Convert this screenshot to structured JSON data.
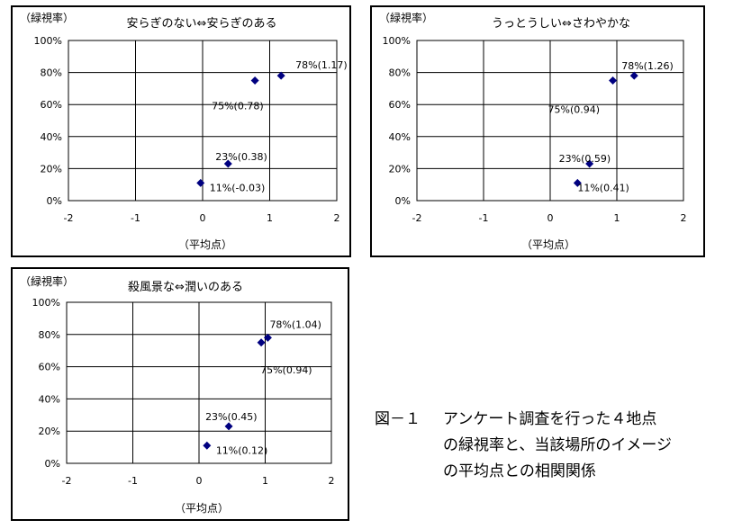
{
  "chart_data": [
    {
      "type": "scatter",
      "title": "安らぎのない⇔安らぎのある",
      "ylabel": "（緑視率）",
      "xlabel": "（平均点）",
      "xlim": [
        -2,
        2
      ],
      "ylim": [
        0,
        100
      ],
      "xticks": [
        "-2",
        "-1",
        "0",
        "1",
        "2"
      ],
      "yticks": [
        "0%",
        "20%",
        "40%",
        "60%",
        "80%",
        "100%"
      ],
      "points": [
        {
          "x": 1.17,
          "y": 78,
          "label": "78%(1.17)"
        },
        {
          "x": 0.78,
          "y": 75,
          "label": "75%(0.78)"
        },
        {
          "x": 0.38,
          "y": 23,
          "label": "23%(0.38)"
        },
        {
          "x": -0.03,
          "y": 11,
          "label": "11%(-0.03)"
        }
      ]
    },
    {
      "type": "scatter",
      "title": "うっとうしい⇔さわやかな",
      "ylabel": "（緑視率）",
      "xlabel": "（平均点）",
      "xlim": [
        -2,
        2
      ],
      "ylim": [
        0,
        100
      ],
      "xticks": [
        "-2",
        "-1",
        "0",
        "1",
        "2"
      ],
      "yticks": [
        "0%",
        "20%",
        "40%",
        "60%",
        "80%",
        "100%"
      ],
      "points": [
        {
          "x": 1.26,
          "y": 78,
          "label": "78%(1.26)"
        },
        {
          "x": 0.94,
          "y": 75,
          "label": "75%(0.94)"
        },
        {
          "x": 0.59,
          "y": 23,
          "label": "23%(0.59)"
        },
        {
          "x": 0.41,
          "y": 11,
          "label": "11%(0.41)"
        }
      ]
    },
    {
      "type": "scatter",
      "title": "殺風景な⇔潤いのある",
      "ylabel": "（緑視率）",
      "xlabel": "（平均点）",
      "xlim": [
        -2,
        2
      ],
      "ylim": [
        0,
        100
      ],
      "xticks": [
        "-2",
        "-1",
        "0",
        "1",
        "2"
      ],
      "yticks": [
        "0%",
        "20%",
        "40%",
        "60%",
        "80%",
        "100%"
      ],
      "points": [
        {
          "x": 1.04,
          "y": 78,
          "label": "78%(1.04)"
        },
        {
          "x": 0.94,
          "y": 75,
          "label": "75%(0.94)"
        },
        {
          "x": 0.45,
          "y": 23,
          "label": "23%(0.45)"
        },
        {
          "x": 0.12,
          "y": 11,
          "label": "11%(0.12)"
        }
      ]
    }
  ],
  "caption": {
    "label": "図－１",
    "line1": "アンケート調査を行った４地点",
    "line2": "の緑視率と、当該場所のイメージ",
    "line3": "の平均点との相関関係"
  },
  "colors": {
    "marker": "#000080",
    "grid": "#000000",
    "plot_bg": "#ffffff"
  }
}
